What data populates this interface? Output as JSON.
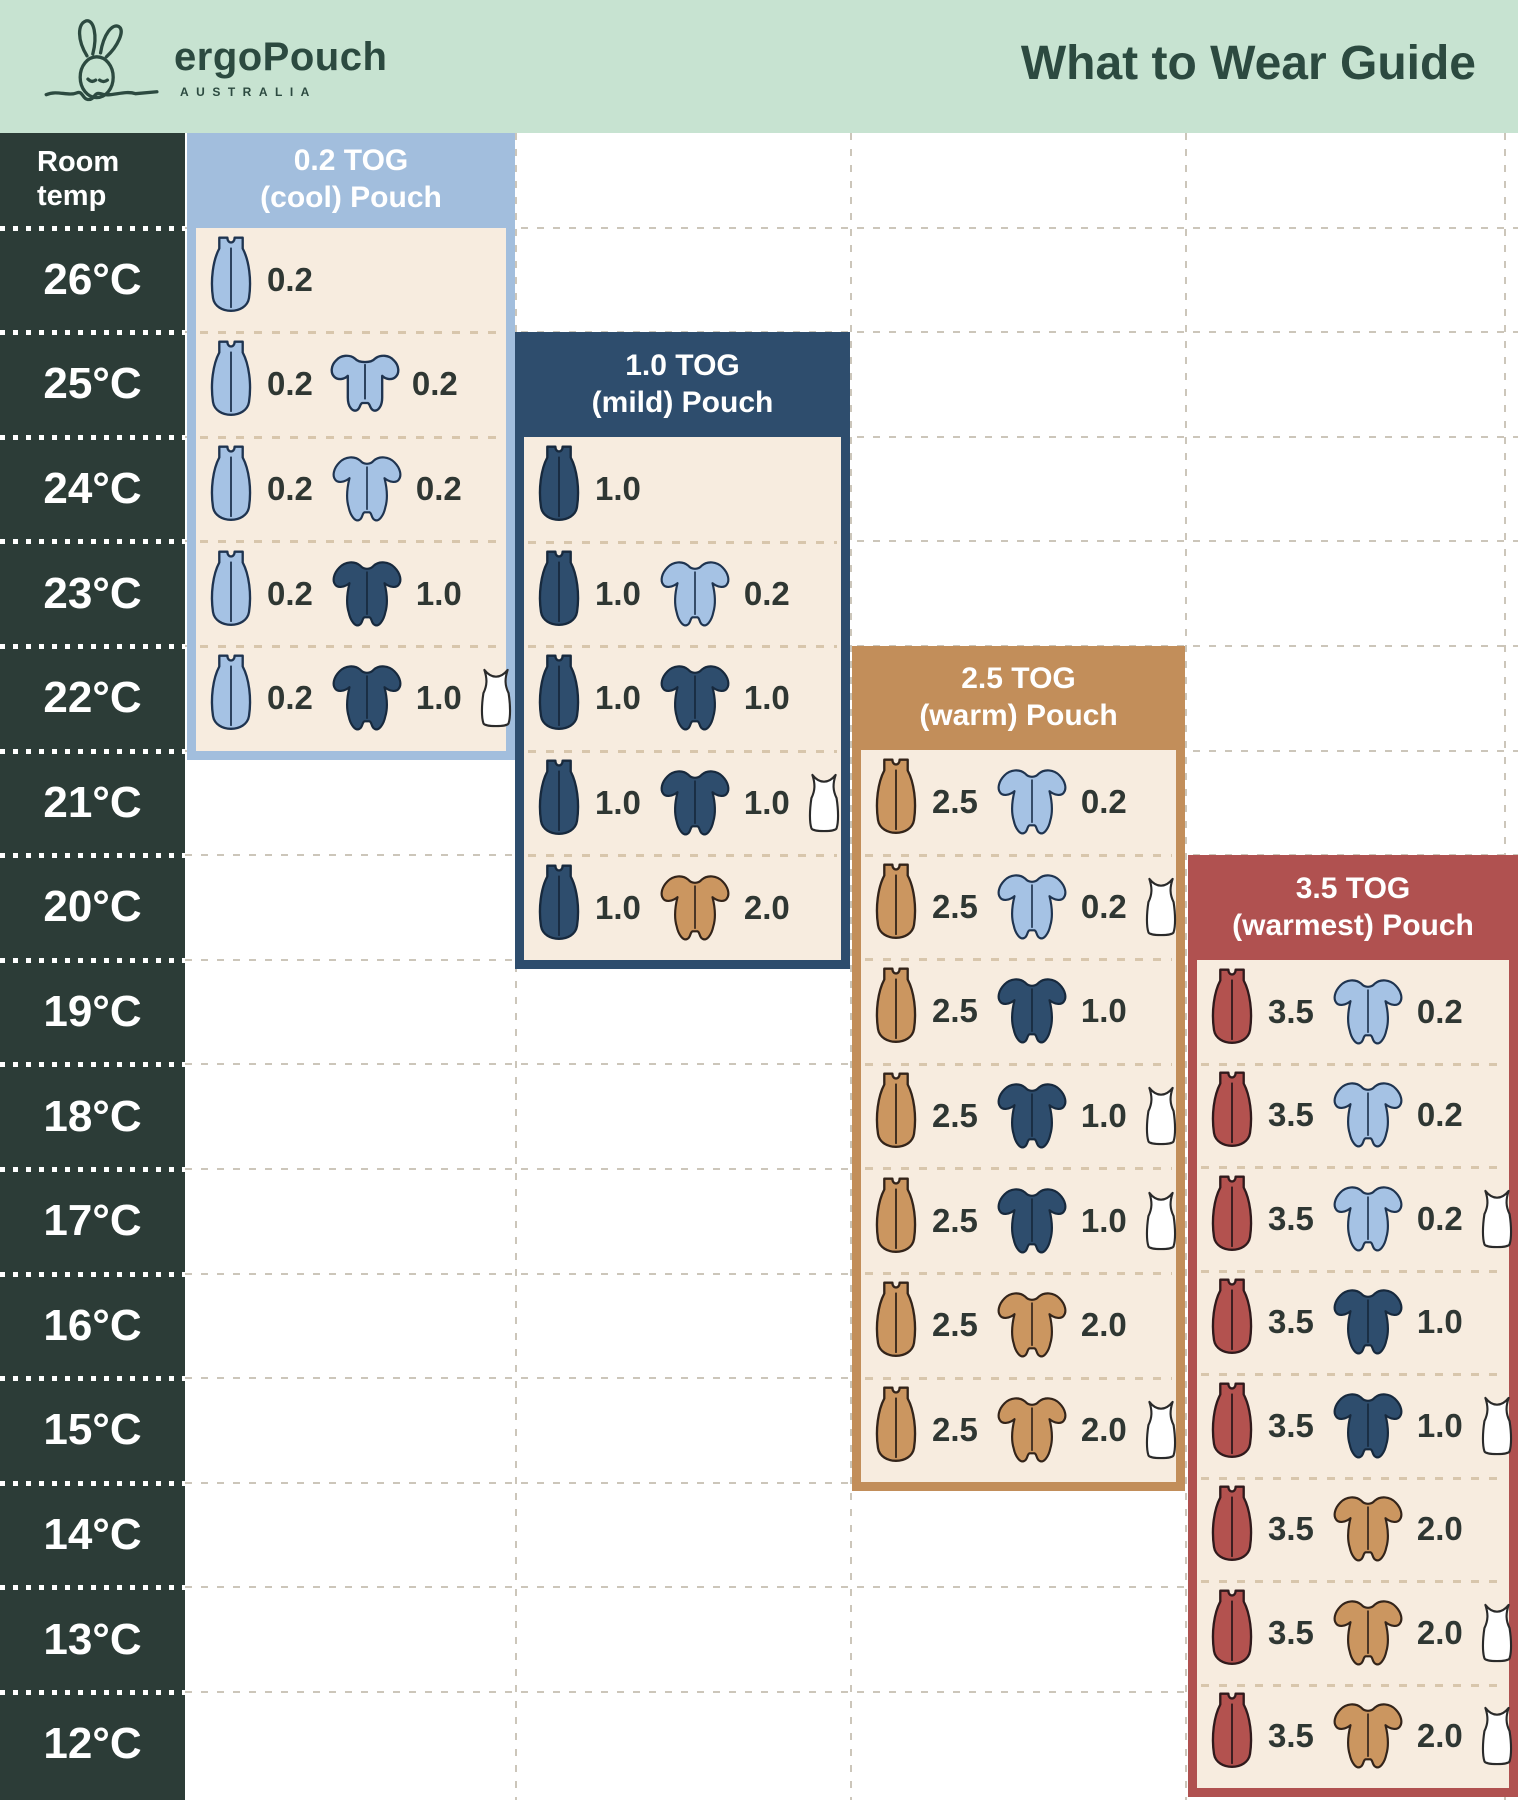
{
  "header": {
    "brand": "ergoPouch",
    "brand_sub": "AUSTRALIA",
    "title": "What to Wear Guide"
  },
  "table": {
    "room_temp_label": "Room temp",
    "temps": [
      "26°C",
      "25°C",
      "24°C",
      "23°C",
      "22°C",
      "21°C",
      "20°C",
      "19°C",
      "18°C",
      "17°C",
      "16°C",
      "15°C",
      "14°C",
      "13°C",
      "12°C"
    ]
  },
  "palette": {
    "mint": "#c7e3d1",
    "dark_green_text": "#2c4a40",
    "temp_column_bg": "#2c3c37",
    "card_body_cream": "#f7ecdf",
    "card_cool_blue": "#a2bedd",
    "card_mild_navy": "#2e4d6d",
    "card_warm_tan": "#c28e5a",
    "card_warmest_red": "#b05150",
    "icon_lightblue": "#a5c2e4",
    "icon_navy": "#2e4d6d",
    "icon_tan": "#cb9660",
    "icon_red": "#b3524f",
    "icon_white": "#ffffff",
    "value_text": "#2f3733"
  },
  "cards": [
    {
      "id": "cool",
      "tog": "0.2",
      "title_line1": "0.2 TOG",
      "title_line2": "(cool) Pouch",
      "rows": [
        {
          "temp": "26°C",
          "items": [
            {
              "type": "pouch",
              "color": "lightblue",
              "tog": "0.2"
            }
          ]
        },
        {
          "temp": "25°C",
          "items": [
            {
              "type": "pouch",
              "color": "lightblue",
              "tog": "0.2"
            },
            {
              "type": "romper",
              "color": "lightblue",
              "tog": "0.2"
            }
          ]
        },
        {
          "temp": "24°C",
          "items": [
            {
              "type": "pouch",
              "color": "lightblue",
              "tog": "0.2"
            },
            {
              "type": "onesie",
              "color": "lightblue",
              "tog": "0.2"
            }
          ]
        },
        {
          "temp": "23°C",
          "items": [
            {
              "type": "pouch",
              "color": "lightblue",
              "tog": "0.2"
            },
            {
              "type": "onesie",
              "color": "navy",
              "tog": "1.0"
            }
          ]
        },
        {
          "temp": "22°C",
          "items": [
            {
              "type": "pouch",
              "color": "lightblue",
              "tog": "0.2"
            },
            {
              "type": "onesie",
              "color": "navy",
              "tog": "1.0"
            },
            {
              "type": "singlet",
              "color": "white"
            }
          ]
        }
      ]
    },
    {
      "id": "mild",
      "tog": "1.0",
      "title_line1": "1.0 TOG",
      "title_line2": "(mild) Pouch",
      "rows": [
        {
          "temp": "24°C",
          "items": [
            {
              "type": "pouch",
              "color": "navy",
              "tog": "1.0"
            }
          ]
        },
        {
          "temp": "23°C",
          "items": [
            {
              "type": "pouch",
              "color": "navy",
              "tog": "1.0"
            },
            {
              "type": "onesie",
              "color": "lightblue",
              "tog": "0.2"
            }
          ]
        },
        {
          "temp": "22°C",
          "items": [
            {
              "type": "pouch",
              "color": "navy",
              "tog": "1.0"
            },
            {
              "type": "onesie",
              "color": "navy",
              "tog": "1.0"
            }
          ]
        },
        {
          "temp": "21°C",
          "items": [
            {
              "type": "pouch",
              "color": "navy",
              "tog": "1.0"
            },
            {
              "type": "onesie",
              "color": "navy",
              "tog": "1.0"
            },
            {
              "type": "singlet",
              "color": "white"
            }
          ]
        },
        {
          "temp": "20°C",
          "items": [
            {
              "type": "pouch",
              "color": "navy",
              "tog": "1.0"
            },
            {
              "type": "onesie",
              "color": "tan",
              "tog": "2.0"
            }
          ]
        }
      ]
    },
    {
      "id": "warm",
      "tog": "2.5",
      "title_line1": "2.5 TOG",
      "title_line2": "(warm) Pouch",
      "rows": [
        {
          "temp": "21°C",
          "items": [
            {
              "type": "pouch",
              "color": "tan",
              "tog": "2.5"
            },
            {
              "type": "onesie",
              "color": "lightblue",
              "tog": "0.2"
            }
          ]
        },
        {
          "temp": "20°C",
          "items": [
            {
              "type": "pouch",
              "color": "tan",
              "tog": "2.5"
            },
            {
              "type": "onesie",
              "color": "lightblue",
              "tog": "0.2"
            },
            {
              "type": "singlet",
              "color": "white"
            }
          ]
        },
        {
          "temp": "19°C",
          "items": [
            {
              "type": "pouch",
              "color": "tan",
              "tog": "2.5"
            },
            {
              "type": "onesie",
              "color": "navy",
              "tog": "1.0"
            }
          ]
        },
        {
          "temp": "18°C",
          "items": [
            {
              "type": "pouch",
              "color": "tan",
              "tog": "2.5"
            },
            {
              "type": "onesie",
              "color": "navy",
              "tog": "1.0"
            },
            {
              "type": "singlet",
              "color": "white"
            }
          ]
        },
        {
          "temp": "17°C",
          "items": [
            {
              "type": "pouch",
              "color": "tan",
              "tog": "2.5"
            },
            {
              "type": "onesie",
              "color": "navy",
              "tog": "1.0"
            },
            {
              "type": "singlet",
              "color": "white"
            }
          ]
        },
        {
          "temp": "16°C",
          "items": [
            {
              "type": "pouch",
              "color": "tan",
              "tog": "2.5"
            },
            {
              "type": "onesie",
              "color": "tan",
              "tog": "2.0"
            }
          ]
        },
        {
          "temp": "15°C",
          "items": [
            {
              "type": "pouch",
              "color": "tan",
              "tog": "2.5"
            },
            {
              "type": "onesie",
              "color": "tan",
              "tog": "2.0"
            },
            {
              "type": "singlet",
              "color": "white"
            }
          ]
        }
      ]
    },
    {
      "id": "warmest",
      "tog": "3.5",
      "title_line1": "3.5 TOG",
      "title_line2": "(warmest) Pouch",
      "rows": [
        {
          "temp": "19°C",
          "items": [
            {
              "type": "pouch",
              "color": "red",
              "tog": "3.5"
            },
            {
              "type": "onesie",
              "color": "lightblue",
              "tog": "0.2"
            }
          ]
        },
        {
          "temp": "18°C",
          "items": [
            {
              "type": "pouch",
              "color": "red",
              "tog": "3.5"
            },
            {
              "type": "onesie",
              "color": "lightblue",
              "tog": "0.2"
            }
          ]
        },
        {
          "temp": "17°C",
          "items": [
            {
              "type": "pouch",
              "color": "red",
              "tog": "3.5"
            },
            {
              "type": "onesie",
              "color": "lightblue",
              "tog": "0.2"
            },
            {
              "type": "singlet",
              "color": "white"
            }
          ]
        },
        {
          "temp": "16°C",
          "items": [
            {
              "type": "pouch",
              "color": "red",
              "tog": "3.5"
            },
            {
              "type": "onesie",
              "color": "navy",
              "tog": "1.0"
            }
          ]
        },
        {
          "temp": "15°C",
          "items": [
            {
              "type": "pouch",
              "color": "red",
              "tog": "3.5"
            },
            {
              "type": "onesie",
              "color": "navy",
              "tog": "1.0"
            },
            {
              "type": "singlet",
              "color": "white"
            }
          ]
        },
        {
          "temp": "14°C",
          "items": [
            {
              "type": "pouch",
              "color": "red",
              "tog": "3.5"
            },
            {
              "type": "onesie",
              "color": "tan",
              "tog": "2.0"
            }
          ]
        },
        {
          "temp": "13°C",
          "items": [
            {
              "type": "pouch",
              "color": "red",
              "tog": "3.5"
            },
            {
              "type": "onesie",
              "color": "tan",
              "tog": "2.0"
            },
            {
              "type": "singlet",
              "color": "white"
            }
          ]
        },
        {
          "temp": "12°C",
          "items": [
            {
              "type": "pouch",
              "color": "red",
              "tog": "3.5"
            },
            {
              "type": "onesie",
              "color": "tan",
              "tog": "2.0"
            },
            {
              "type": "singlet",
              "color": "white"
            }
          ]
        }
      ]
    }
  ],
  "chart_data": {
    "type": "table",
    "title": "What to Wear Guide",
    "row_header": "Room temp",
    "temps": [
      "26°C",
      "25°C",
      "24°C",
      "23°C",
      "22°C",
      "21°C",
      "20°C",
      "19°C",
      "18°C",
      "17°C",
      "16°C",
      "15°C",
      "14°C",
      "13°C",
      "12°C"
    ],
    "columns": [
      "0.2 TOG (cool) Pouch",
      "1.0 TOG (mild) Pouch",
      "2.5 TOG (warm) Pouch",
      "3.5 TOG (warmest) Pouch"
    ],
    "cells": {
      "0.2 TOG (cool) Pouch": {
        "26°C": "pouch 0.2",
        "25°C": "pouch 0.2 + short-sleeve romper 0.2",
        "24°C": "pouch 0.2 + onesie 0.2",
        "23°C": "pouch 0.2 + onesie 1.0",
        "22°C": "pouch 0.2 + onesie 1.0 + singlet"
      },
      "1.0 TOG (mild) Pouch": {
        "24°C": "pouch 1.0",
        "23°C": "pouch 1.0 + onesie 0.2",
        "22°C": "pouch 1.0 + onesie 1.0",
        "21°C": "pouch 1.0 + onesie 1.0 + singlet",
        "20°C": "pouch 1.0 + onesie 2.0"
      },
      "2.5 TOG (warm) Pouch": {
        "21°C": "pouch 2.5 + onesie 0.2",
        "20°C": "pouch 2.5 + onesie 0.2 + singlet",
        "19°C": "pouch 2.5 + onesie 1.0",
        "18°C": "pouch 2.5 + onesie 1.0 + singlet",
        "17°C": "pouch 2.5 + onesie 1.0 + singlet",
        "16°C": "pouch 2.5 + onesie 2.0",
        "15°C": "pouch 2.5 + onesie 2.0 + singlet"
      },
      "3.5 TOG (warmest) Pouch": {
        "19°C": "pouch 3.5 + onesie 0.2",
        "18°C": "pouch 3.5 + onesie 0.2",
        "17°C": "pouch 3.5 + onesie 0.2 + singlet",
        "16°C": "pouch 3.5 + onesie 1.0",
        "15°C": "pouch 3.5 + onesie 1.0 + singlet",
        "14°C": "pouch 3.5 + onesie 2.0",
        "13°C": "pouch 3.5 + onesie 2.0 + singlet",
        "12°C": "pouch 3.5 + onesie 2.0 + singlet"
      }
    }
  }
}
